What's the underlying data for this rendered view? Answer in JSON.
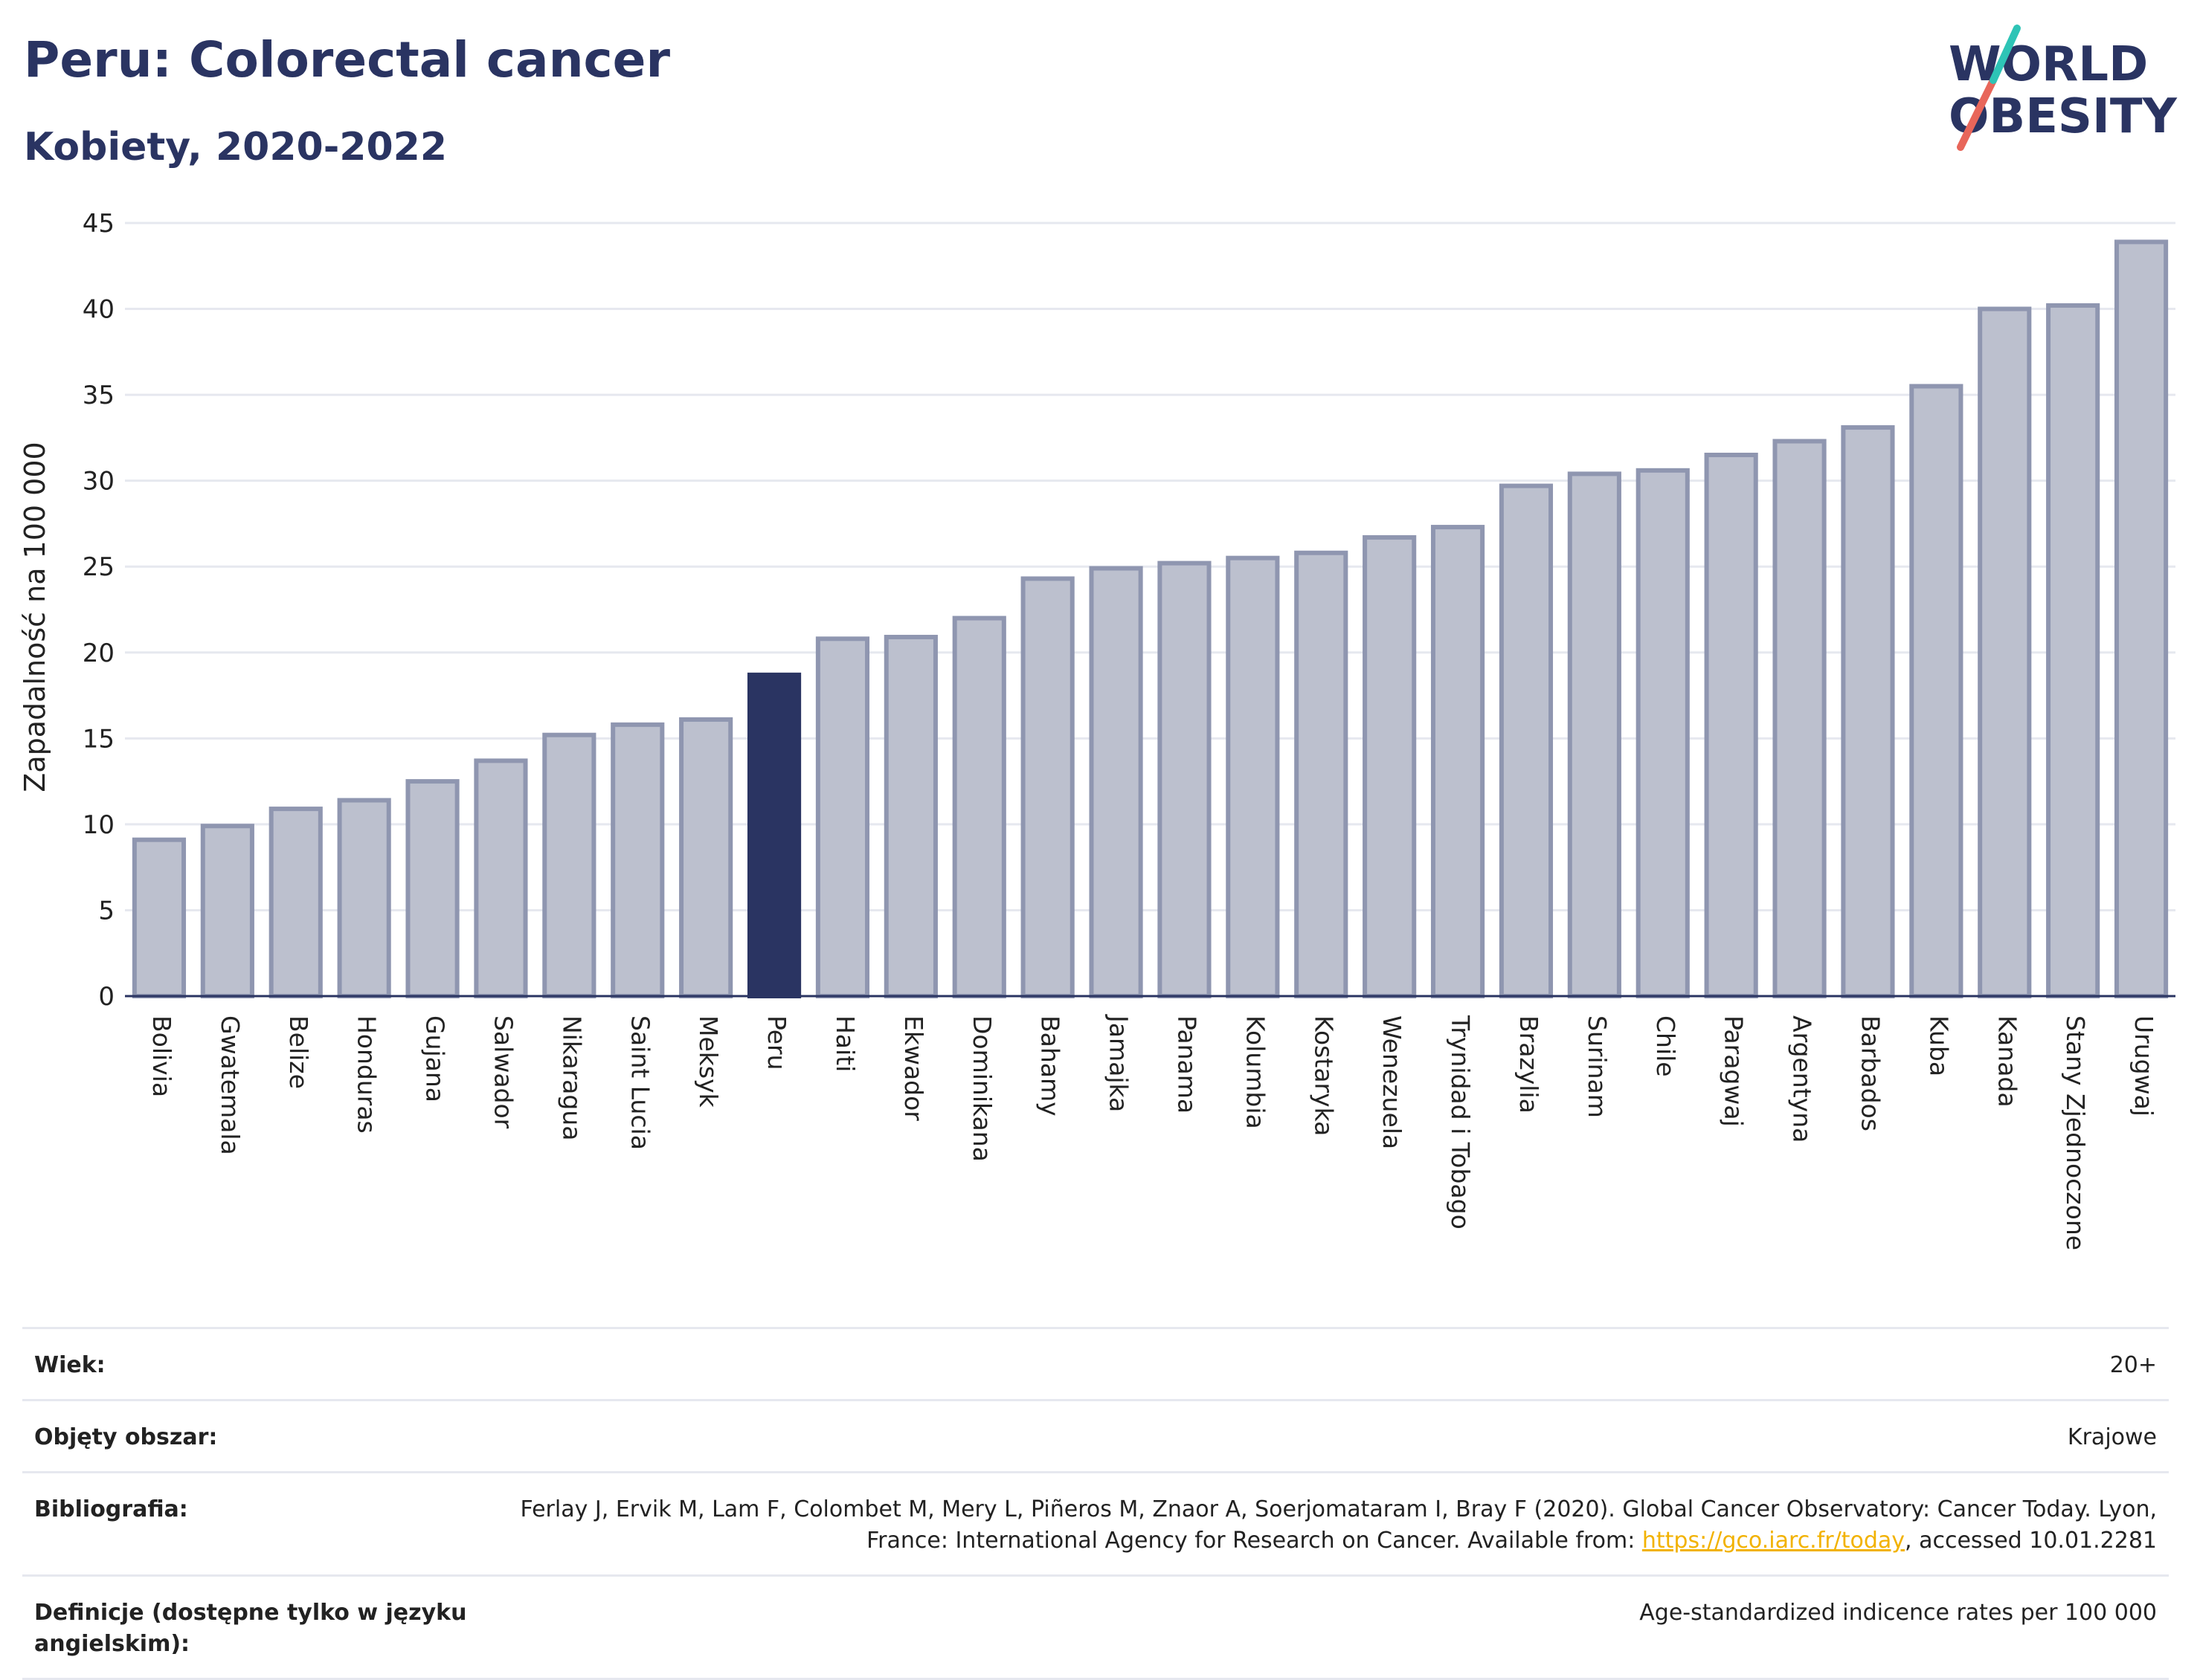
{
  "header": {
    "title": "Peru: Colorectal cancer",
    "subtitle": "Kobiety, 2020-2022"
  },
  "logo": {
    "line1": "WORLD",
    "line2": "OBESITY",
    "accent_teal": "#2ec4b6",
    "accent_red": "#e8665a"
  },
  "colors": {
    "highlight": "#2a3462",
    "bar": "#bcc0ce",
    "bar_edge": "#8f96b0",
    "grid": "#e6e8ef"
  },
  "chart_data": {
    "type": "bar",
    "title": "Peru: Colorectal cancer",
    "subtitle": "Kobiety, 2020-2022",
    "ylabel": "Zapadalność na 100 000",
    "xlabel": "",
    "ylim": [
      0,
      45
    ],
    "yticks": [
      0,
      5,
      10,
      15,
      20,
      25,
      30,
      35,
      40,
      45
    ],
    "grid": true,
    "highlight": "Peru",
    "categories": [
      "Bolivia",
      "Gwatemala",
      "Belize",
      "Honduras",
      "Gujana",
      "Salwador",
      "Nikaragua",
      "Saint Lucia",
      "Meksyk",
      "Peru",
      "Haiti",
      "Ekwador",
      "Dominikana",
      "Bahamy",
      "Jamajka",
      "Panama",
      "Kolumbia",
      "Kostaryka",
      "Wenezuela",
      "Trynidad i Tobago",
      "Brazylia",
      "Surinam",
      "Chile",
      "Paragwaj",
      "Argentyna",
      "Barbados",
      "Kuba",
      "Kanada",
      "Stany Zjednoczone",
      "Urugwaj"
    ],
    "values": [
      9.1,
      9.9,
      10.9,
      11.4,
      12.5,
      13.7,
      15.2,
      15.8,
      16.1,
      18.7,
      20.8,
      20.9,
      22.0,
      24.3,
      24.9,
      25.2,
      25.5,
      25.8,
      26.7,
      27.3,
      29.7,
      30.4,
      30.6,
      31.5,
      32.3,
      33.1,
      35.5,
      40.0,
      40.2,
      43.9
    ]
  },
  "meta": [
    {
      "key": "Wiek:",
      "value": "20+"
    },
    {
      "key": "Objęty obszar:",
      "value": "Krajowe"
    },
    {
      "key": "Bibliografia:",
      "value_pre": "Ferlay J, Ervik M, Lam F, Colombet M, Mery L, Piñeros M, Znaor A, Soerjomataram I, Bray F (2020). Global Cancer Observatory: Cancer Today. Lyon, France: International Agency for Research on Cancer. Available from: ",
      "link": "https://gco.iarc.fr/today",
      "value_post": ", accessed 10.01.2281"
    },
    {
      "key": "Definicje (dostępne tylko w języku angielskim):",
      "value": "Age-standardized indicence rates per 100 000"
    }
  ]
}
